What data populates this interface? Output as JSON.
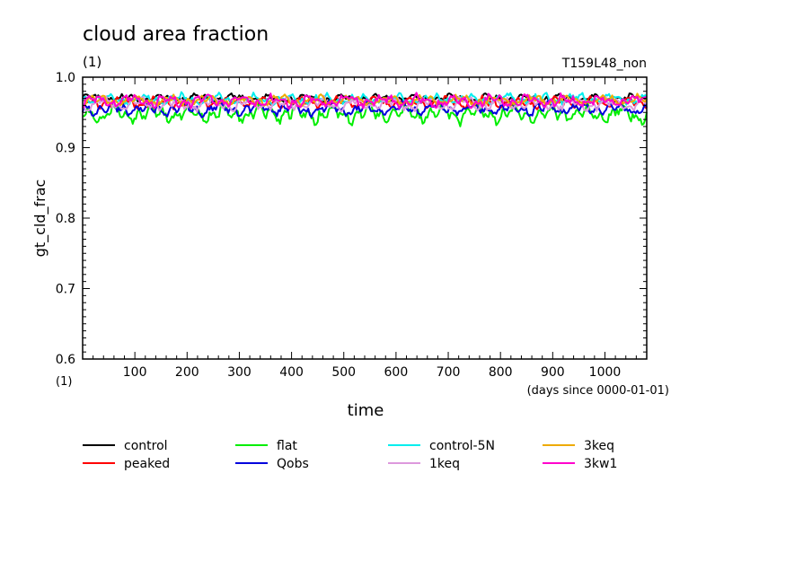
{
  "chart_data": {
    "type": "line",
    "title": "cloud area fraction",
    "units_label": "(1)",
    "run_label": "T159L48_non",
    "ylabel": "gt_cld_frac",
    "xlabel": "time",
    "x_units_label": "(days since 0000-01-01)",
    "y_units_label": "(1)",
    "xlim": [
      0,
      1080
    ],
    "ylim": [
      0.6,
      1.0
    ],
    "x_ticks": [
      "100",
      "200",
      "300",
      "400",
      "500",
      "600",
      "700",
      "800",
      "900",
      "1000"
    ],
    "y_ticks": [
      "0.6",
      "0.7",
      "0.8",
      "0.9",
      "1.0"
    ],
    "grid": false,
    "legend_position": "bottom",
    "series": [
      {
        "name": "control",
        "color": "#000000",
        "mean": 0.97,
        "amp": 0.003,
        "phase": 0.3
      },
      {
        "name": "peaked",
        "color": "#ff0000",
        "mean": 0.964,
        "amp": 0.004,
        "phase": 1.1
      },
      {
        "name": "flat",
        "color": "#00ee00",
        "mean": 0.948,
        "amp": 0.007,
        "phase": 2.0
      },
      {
        "name": "Qobs",
        "color": "#0000dd",
        "mean": 0.955,
        "amp": 0.005,
        "phase": 2.7
      },
      {
        "name": "control-5N",
        "color": "#00eeee",
        "mean": 0.969,
        "amp": 0.004,
        "phase": 3.4
      },
      {
        "name": "1keq",
        "color": "#dd99dd",
        "mean": 0.962,
        "amp": 0.005,
        "phase": 4.2
      },
      {
        "name": "3keq",
        "color": "#eeaa00",
        "mean": 0.967,
        "amp": 0.004,
        "phase": 5.0
      },
      {
        "name": "3kw1",
        "color": "#ff00cc",
        "mean": 0.966,
        "amp": 0.005,
        "phase": 5.7
      }
    ]
  }
}
